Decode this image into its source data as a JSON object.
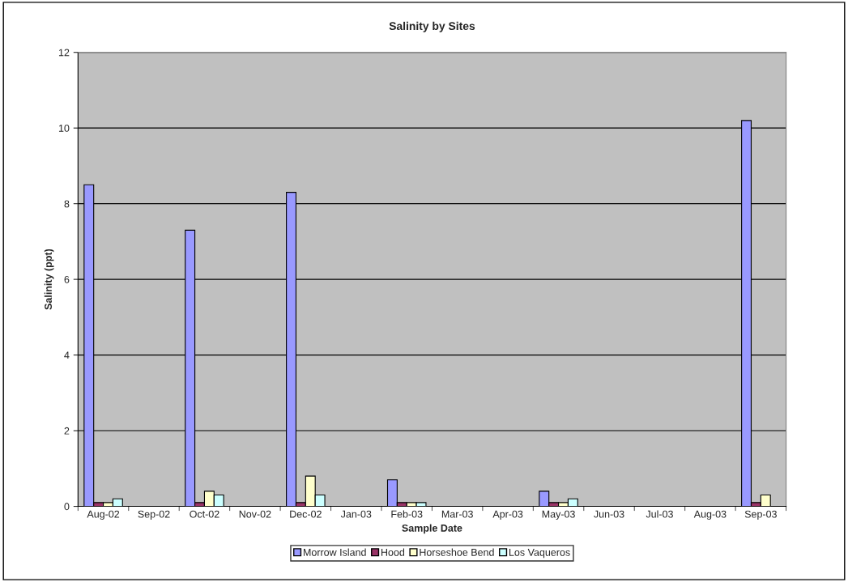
{
  "chart_data": {
    "type": "bar",
    "title": "Salinity by Sites",
    "xlabel": "Sample Date",
    "ylabel": "Salinity (ppt)",
    "categories": [
      "Aug-02",
      "Sep-02",
      "Oct-02",
      "Nov-02",
      "Dec-02",
      "Jan-03",
      "Feb-03",
      "Mar-03",
      "Apr-03",
      "May-03",
      "Jun-03",
      "Jul-03",
      "Aug-03",
      "Sep-03"
    ],
    "series": [
      {
        "name": "Morrow Island",
        "color": "#9999ff",
        "values": [
          8.5,
          null,
          7.3,
          null,
          8.3,
          null,
          0.7,
          null,
          null,
          0.4,
          null,
          null,
          null,
          10.2
        ]
      },
      {
        "name": "Hood",
        "color": "#993366",
        "values": [
          0.1,
          null,
          0.1,
          null,
          0.1,
          null,
          0.1,
          null,
          null,
          0.1,
          null,
          null,
          null,
          0.1
        ]
      },
      {
        "name": "Horseshoe Bend",
        "color": "#ffffcc",
        "values": [
          0.1,
          null,
          0.4,
          null,
          0.8,
          null,
          0.1,
          null,
          null,
          0.1,
          null,
          null,
          null,
          0.3
        ]
      },
      {
        "name": "Los Vaqueros",
        "color": "#ccffff",
        "values": [
          0.2,
          null,
          0.3,
          null,
          0.3,
          null,
          0.1,
          null,
          null,
          0.2,
          null,
          null,
          null,
          null
        ]
      }
    ],
    "ylim": [
      0,
      12
    ],
    "yticks": [
      0,
      2,
      4,
      6,
      8,
      10,
      12
    ],
    "grid": "y",
    "legend": "bottom"
  }
}
